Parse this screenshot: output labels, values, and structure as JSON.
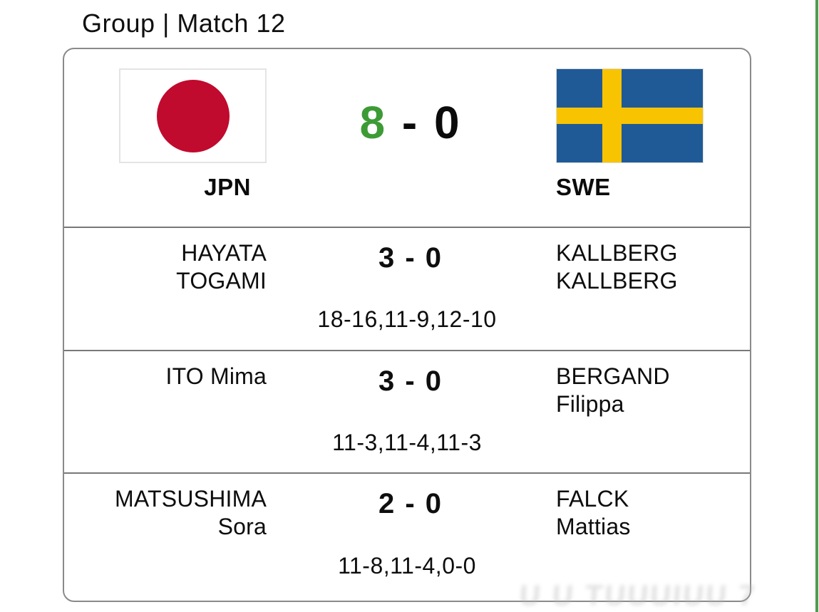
{
  "page": {
    "title": "Group | Match 12"
  },
  "colors": {
    "accent_green": "#3d9b35",
    "edge_stripe_green": "#539953",
    "card_border_gray": "#8a8a8a",
    "row_divider_gray": "#787878",
    "japan_flag_red": "#c00a2e",
    "sweden_flag_blue": "#1f5a96",
    "sweden_flag_yellow": "#f8c300"
  },
  "scoreboard": {
    "home_team": {
      "code": "JPN",
      "flag": "japan-flag"
    },
    "away_team": {
      "code": "SWE",
      "flag": "sweden-flag"
    },
    "total_score": {
      "home": "8",
      "dash": "-",
      "away": "0"
    }
  },
  "matches": [
    {
      "home_player": "HAYATA\nTOGAMI",
      "score": "3 - 0",
      "away_player": "KALLBERG\nKALLBERG",
      "sets": "18-16,11-9,12-10"
    },
    {
      "home_player": "ITO Mima",
      "score": "3 - 0",
      "away_player": "BERGAND\nFilippa",
      "sets": "11-3,11-4,11-3"
    },
    {
      "home_player": "MATSUSHIMA\nSora",
      "score": "2 - 0",
      "away_player": "FALCK\nMattias",
      "sets": "11-8,11-4,0-0"
    }
  ],
  "watermark": {
    "text": "U U TUUUIUU 7"
  }
}
